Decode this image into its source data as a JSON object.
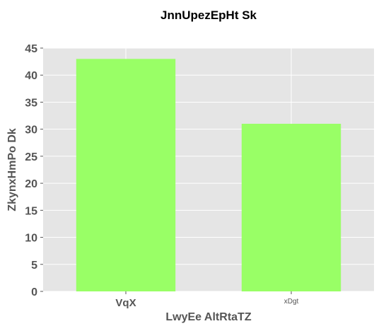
{
  "chart_data": {
    "type": "bar",
    "title": "JnnUpezEpHt Sk",
    "xlabel": "LwyEe AltRtaTZ",
    "ylabel": "ZkynxHmPo Dk",
    "categories": [
      "VqX",
      "xDgt"
    ],
    "values": [
      43,
      31
    ],
    "ylim": [
      0,
      45
    ],
    "yticks": [
      0,
      5,
      10,
      15,
      20,
      25,
      30,
      35,
      40,
      45
    ],
    "grid": true,
    "colors": {
      "bar": "#99ff66",
      "plot_background": "#e5e5e5",
      "grid": "#ffffff",
      "tick_text": "#555555"
    }
  }
}
